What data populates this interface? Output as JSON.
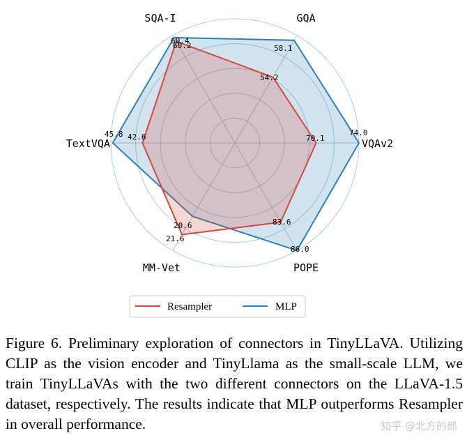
{
  "chart_data": {
    "type": "radar",
    "axes": [
      "SQA-I",
      "GQA",
      "VQAv2",
      "POPE",
      "MM-Vet",
      "TextVQA"
    ],
    "series": [
      {
        "name": "Resampler",
        "color": "#d9473a",
        "values": [
          60.2,
          54.2,
          70.1,
          83.6,
          21.6,
          42.6
        ]
      },
      {
        "name": "MLP",
        "color": "#2e7fb4",
        "values": [
          60.4,
          58.1,
          74.0,
          86.0,
          20.6,
          45.8
        ]
      }
    ],
    "value_labels": {
      "Resampler": [
        "60.2",
        "54.2",
        "70.1",
        "83.6",
        "21.6",
        "42.6"
      ],
      "MLP": [
        "60.4",
        "58.1",
        "74.0",
        "86.0",
        "20.6",
        "45.8"
      ]
    },
    "normalized_radius": {
      "Resampler": [
        0.945,
        0.612,
        0.655,
        0.737,
        0.853,
        0.745
      ],
      "MLP": [
        0.98,
        0.955,
        1.0,
        1.0,
        0.683,
        0.984
      ]
    },
    "grid": true,
    "legend": "bottom-center"
  },
  "caption": "Figure 6. Preliminary exploration of connectors in TinyLLaVA. Utilizing CLIP as the vision encoder and TinyLlama as the small-scale LLM, we train TinyLLaVAs with the two different connectors on the LLaVA-1.5 dataset, respectively. The results indicate that MLP outperforms Resampler in overall performance.",
  "watermark": "知乎 @北方的郎"
}
